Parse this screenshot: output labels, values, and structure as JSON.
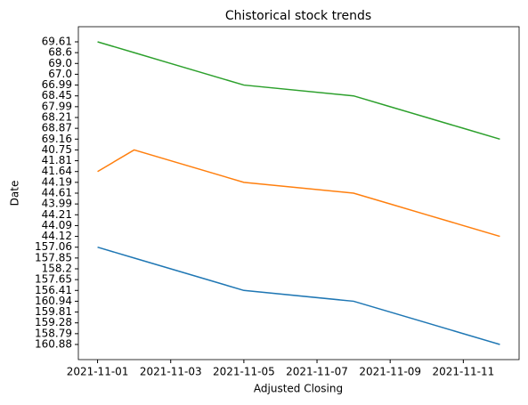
{
  "chart_data": {
    "type": "line",
    "title": "Chistorical stock trends",
    "xlabel": "Adjusted Closing",
    "ylabel": "Date",
    "x": [
      "2021-11-12",
      "2021-11-11",
      "2021-11-10",
      "2021-11-09",
      "2021-11-08",
      "2021-11-05",
      "2021-11-04",
      "2021-11-03",
      "2021-11-02",
      "2021-11-01"
    ],
    "xlim": [
      "2021-10-31T11:24",
      "2021-11-12T12:36"
    ],
    "xticks": [
      "2021-11-01",
      "2021-11-03",
      "2021-11-05",
      "2021-11-07",
      "2021-11-09",
      "2021-11-11"
    ],
    "ycategories": [
      "160.88",
      "158.79",
      "159.28",
      "159.81",
      "160.94",
      "156.41",
      "157.65",
      "158.2",
      "157.85",
      "157.06",
      "44.12",
      "44.09",
      "44.21",
      "43.99",
      "44.61",
      "44.19",
      "41.64",
      "41.81",
      "40.75",
      "69.16",
      "68.87",
      "68.21",
      "67.99",
      "68.45",
      "66.99",
      "67.0",
      "69.0",
      "68.6",
      "69.61"
    ],
    "ylim": [
      -1.4,
      29.4
    ],
    "series": [
      {
        "color": "#1f77b4",
        "values": [
          "160.88",
          "158.79",
          "159.28",
          "159.81",
          "160.94",
          "156.41",
          "157.65",
          "158.2",
          "157.85",
          "157.06"
        ]
      },
      {
        "color": "#ff7f0e",
        "values": [
          "44.12",
          "44.09",
          "44.21",
          "43.99",
          "44.61",
          "44.19",
          "41.64",
          "41.81",
          "40.75",
          "41.64"
        ]
      },
      {
        "color": "#2ca02c",
        "values": [
          "69.16",
          "68.87",
          "68.21",
          "67.99",
          "68.45",
          "66.99",
          "67.0",
          "69.0",
          "68.6",
          "69.61"
        ]
      }
    ]
  }
}
